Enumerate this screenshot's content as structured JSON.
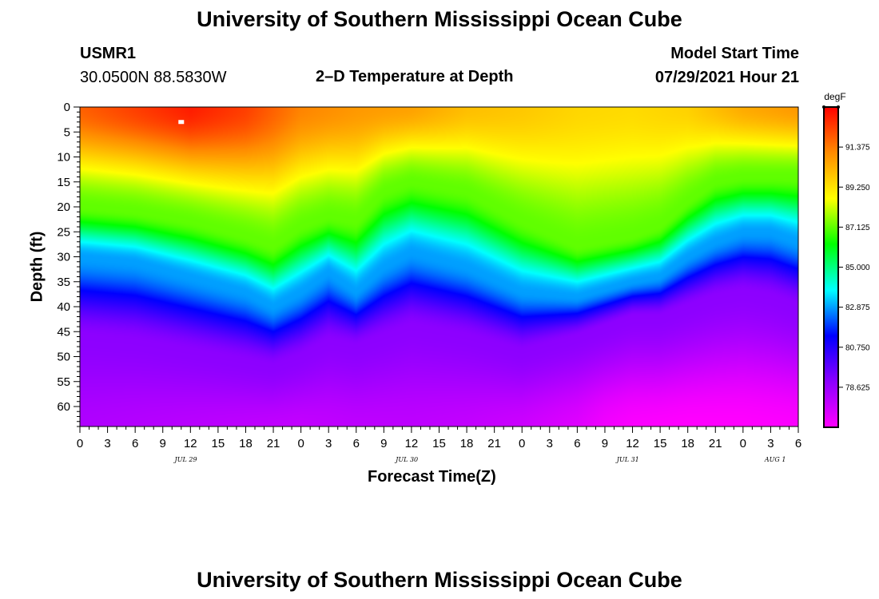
{
  "header": {
    "title": "University of Southern Mississippi Ocean Cube",
    "station": "USMR1",
    "coords": "30.0500N  88.5830W",
    "plot_title": "2–D Temperature at Depth",
    "model_start_label": "Model Start Time",
    "model_start_value": "07/29/2021 Hour 21"
  },
  "footer": {
    "title": "University of Southern Mississippi Ocean Cube"
  },
  "colors": {
    "stops": [
      "#ff00ff",
      "#8c00ff",
      "#0000ff",
      "#00ffff",
      "#00ff00",
      "#ffff00",
      "#ff8c00",
      "#ff0000"
    ]
  },
  "chart_data": {
    "type": "heatmap",
    "title": "2–D Temperature at Depth",
    "xlabel": "Forecast Time(Z)",
    "ylabel": "Depth (ft)",
    "xlim": [
      0,
      78
    ],
    "ylim": [
      0,
      64
    ],
    "x_tick_labels": [
      "0",
      "3",
      "6",
      "9",
      "12",
      "15",
      "18",
      "21",
      "0",
      "3",
      "6",
      "9",
      "12",
      "15",
      "18",
      "21",
      "0",
      "3",
      "6",
      "9",
      "12",
      "15",
      "18",
      "21",
      "0",
      "3",
      "6"
    ],
    "date_labels": [
      {
        "text": "JUL 29",
        "hour": 11.5
      },
      {
        "text": "JUL 30",
        "hour": 35.5
      },
      {
        "text": "JUL 31",
        "hour": 59.5
      },
      {
        "text": "AUG 1",
        "hour": 75.5
      }
    ],
    "y_tick_labels": [
      "0",
      "5",
      "10",
      "15",
      "20",
      "25",
      "30",
      "35",
      "40",
      "45",
      "50",
      "55",
      "60"
    ],
    "colorbar": {
      "unit": "degF",
      "range": [
        76.5,
        93.5
      ],
      "tick_values": [
        91.375,
        89.25,
        87.125,
        85.0,
        82.875,
        80.75,
        78.625
      ],
      "tick_labels": [
        "91.375",
        "89.250",
        "87.125",
        "85.000",
        "82.875",
        "80.750",
        "78.625"
      ]
    },
    "grid": false,
    "isotherm_depths_ft": {
      "hours": [
        0,
        6,
        12,
        18,
        21,
        24,
        27,
        30,
        33,
        36,
        42,
        48,
        54,
        60,
        63,
        66,
        69,
        72,
        75,
        78
      ],
      "t87": [
        20,
        21,
        23,
        26,
        28,
        24,
        22,
        23,
        17,
        15,
        17,
        23,
        28,
        26,
        24,
        19,
        15,
        14,
        14,
        14
      ],
      "t82": [
        30,
        31,
        34,
        37,
        40,
        37,
        33,
        37,
        32,
        29,
        32,
        37,
        38,
        35,
        34,
        30,
        27,
        25,
        25,
        27
      ],
      "t79": [
        46,
        47,
        49,
        51,
        52,
        50,
        47,
        48,
        46,
        44,
        46,
        49,
        46,
        42,
        42,
        40,
        38,
        37,
        38,
        40
      ]
    },
    "surface_temp_degF": {
      "hours": [
        0,
        6,
        12,
        18,
        24,
        30,
        36,
        42,
        48,
        54,
        60,
        66,
        72,
        78
      ],
      "values": [
        91.8,
        92.4,
        93.0,
        92.4,
        91.2,
        90.8,
        90.6,
        90.0,
        89.8,
        89.5,
        89.4,
        89.6,
        90.4,
        90.8
      ]
    },
    "bottom_temp_degF": {
      "hours": [
        0,
        6,
        12,
        18,
        24,
        30,
        36,
        42,
        48,
        54,
        57,
        60,
        66,
        72,
        78
      ],
      "values": [
        78.2,
        78.1,
        78.0,
        77.9,
        77.8,
        77.9,
        77.9,
        77.8,
        77.6,
        77.2,
        76.8,
        76.6,
        76.5,
        76.5,
        76.6
      ]
    },
    "marker": {
      "hour": 11,
      "depth_ft": 3
    }
  }
}
